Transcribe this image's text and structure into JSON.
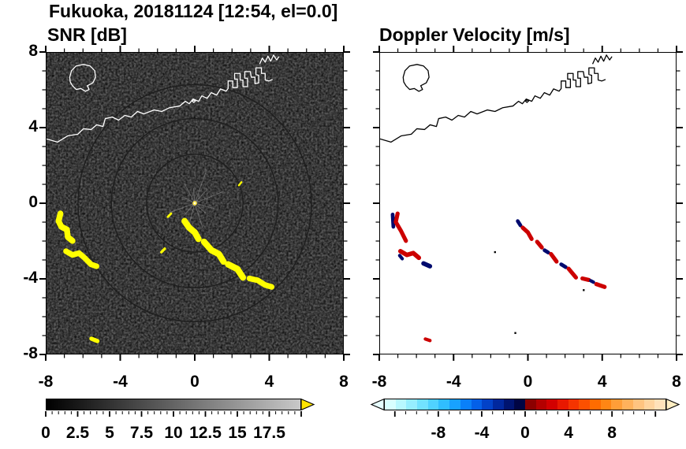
{
  "header": {
    "title": "Fukuoka, 20181124 [12:54, el=0.0]"
  },
  "panels": {
    "snr": {
      "title": "SNR [dB]",
      "bg": "#060606",
      "coast_color": "#ffffff",
      "echo_color": "#ffff00"
    },
    "vel": {
      "title": "Doppler Velocity [m/s]",
      "bg": "#ffffff",
      "coast_color": "#000000"
    }
  },
  "axes": {
    "xlim": [
      -8,
      8
    ],
    "ylim": [
      -8,
      8
    ],
    "major_step": 4,
    "minor_step": 1,
    "x_labels": [
      {
        "v": -8,
        "t": "-8"
      },
      {
        "v": -4,
        "t": "-4"
      },
      {
        "v": 0,
        "t": "0"
      },
      {
        "v": 4,
        "t": "4"
      },
      {
        "v": 8,
        "t": "8"
      }
    ],
    "y_labels": [
      {
        "v": 8,
        "t": "8"
      },
      {
        "v": 4,
        "t": "4"
      },
      {
        "v": 0,
        "t": "0"
      },
      {
        "v": -4,
        "t": "-4"
      },
      {
        "v": -8,
        "t": "-8"
      }
    ]
  },
  "colorbars": {
    "snr": {
      "min": 0,
      "max": 20,
      "minor_step": 0.5,
      "label_step": 2.5,
      "gradient": [
        "#000000",
        "#c8c8c8"
      ],
      "arrow": "#ffe400",
      "labels": [
        {
          "v": 0,
          "t": "0"
        },
        {
          "v": 2.5,
          "t": "2.5"
        },
        {
          "v": 5,
          "t": "5"
        },
        {
          "v": 7.5,
          "t": "7.5"
        },
        {
          "v": 10,
          "t": "10"
        },
        {
          "v": 12.5,
          "t": "12.5"
        },
        {
          "v": 15,
          "t": "15"
        },
        {
          "v": 17.5,
          "t": "17.5"
        }
      ]
    },
    "vel": {
      "min": -13,
      "max": 13,
      "minor_step": 1,
      "label_step": 4,
      "segments": [
        "#d8ffff",
        "#b8f8ff",
        "#96eeff",
        "#72e2ff",
        "#50d2ff",
        "#30beff",
        "#18a2ff",
        "#0a80f8",
        "#0460e8",
        "#0242c8",
        "#01289e",
        "#001470",
        "#000544",
        "#8c0000",
        "#b40000",
        "#d20000",
        "#e81800",
        "#f53400",
        "#fb5000",
        "#ff6c00",
        "#ff8614",
        "#ff9e38",
        "#ffb25c",
        "#ffc480",
        "#ffd49e",
        "#ffe2ba"
      ],
      "arrow_left": "#e6feff",
      "arrow_right": "#ffeec2",
      "labels": [
        {
          "v": -8,
          "t": "-8"
        },
        {
          "v": -4,
          "t": "-4"
        },
        {
          "v": 0,
          "t": "0"
        },
        {
          "v": 4,
          "t": "4"
        },
        {
          "v": 8,
          "t": "8"
        }
      ]
    }
  },
  "geometry": {
    "note": "paths in viewBox coords 0..16 x 0..16, y down; data_x = x-8, data_y = 8-y",
    "coastline": [
      "M 0,4.58 L 0.59,4.75 L 1.14,4.42 L 1.69,4.33 L 1.99,4.04 L 2.41,4.08 L 2.71,3.83 L 3.05,3.92 L 3.17,3.5 L 3.55,3.42 L 3.89,3.58 L 4.23,3.33 L 4.57,3.42 L 4.91,3.12 L 5.25,3.25 L 5.8,3.04 L 6.22,3.12 L 6.64,2.92 L 7.19,2.83 L 7.49,2.58 L 7.7,2.71 L 7.91,2.46 L 8.21,2.58 L 8.38,2.29 L 8.67,2.42 L 8.89,2.12 L 9.18,2.25 L 9.39,1.92 L 9.69,2.04 L 9.8,1.9 L 9.8,1.5 L 10.05,1.5 L 10.05,1.85 L 10.3,1.85 L 10.3,1.4 L 10.15,1.4 L 10.15,1.1 L 10.45,1.1 L 10.45,1.45 L 10.6,1.45 L 10.6,1.8 L 10.85,1.8 L 10.85,1.35 L 10.7,1.35 L 10.7,1.0 L 11.0,1.0 L 11.05,1.3 L 11.25,1.3 L 11.25,1.65 L 11.45,1.6 L 11.45,1.2 L 11.3,1.15 L 11.3,0.8 L 11.6,0.8 L 11.6,1.1 L 11.8,1.1 L 11.8,1.45 L 12.0,1.5 L 12.2,1.42",
      "M 1.25,1.3 L 1.35,0.95 L 1.6,0.7 L 2.0,0.62 L 2.35,0.7 L 2.6,0.95 L 2.65,1.3 L 2.5,1.6 L 2.2,1.75 L 2.3,1.95 L 2.1,2.05 L 1.85,1.9 L 1.6,1.95 L 1.4,1.75 L 1.28,1.55 Z",
      "M 11.5,0.6 L 11.65,0.28 L 11.8,0.5 L 11.95,0.18 L 12.1,0.45 L 12.25,0.12 L 12.42,0.38 L 12.55,0.2",
      "M 7.95,2.5 L 8.03,2.57 L 7.95,2.64 L 7.87,2.57 Z"
    ],
    "rings": [
      2.6,
      4.5,
      6.3
    ],
    "spokes": [
      [
        22,
        1.7
      ],
      [
        48,
        1.0
      ],
      [
        70,
        1.9
      ],
      [
        95,
        0.8
      ],
      [
        118,
        1.2
      ],
      [
        152,
        0.7
      ],
      [
        200,
        1.5
      ],
      [
        228,
        0.9
      ],
      [
        255,
        1.2
      ],
      [
        288,
        1.4
      ],
      [
        318,
        0.8
      ],
      [
        345,
        1.1
      ]
    ],
    "snr_echoes": [
      {
        "p": "0.75,8.55 0.65,8.95 0.8,9.25 1.1,9.4 1.15,9.8 1.4,10.0",
        "w": 0.32
      },
      {
        "p": "1.05,10.55 1.4,10.75 1.75,10.65 2.05,10.9 2.4,11.25 2.7,11.35",
        "w": 0.3
      },
      {
        "p": "7.45,8.95 7.7,9.3 8.0,9.55 8.2,9.9",
        "w": 0.34
      },
      {
        "p": "8.5,10.05 8.9,10.5 9.3,10.7 9.55,11.1",
        "w": 0.34
      },
      {
        "p": "9.8,11.25 10.3,11.5 10.6,11.95",
        "w": 0.34
      },
      {
        "p": "10.95,12.0 11.4,12.1 11.8,12.35 12.15,12.45",
        "w": 0.3
      },
      {
        "p": "6.2,10.6 6.38,10.42",
        "w": 0.14
      },
      {
        "p": "6.55,8.72 6.72,8.55",
        "w": 0.12
      },
      {
        "p": "10.38,7.05 10.52,6.88",
        "w": 0.1
      },
      {
        "p": "2.42,15.2 2.75,15.33",
        "w": 0.22
      }
    ],
    "vel_echoes": [
      {
        "p": "0.68,8.6 0.72,9.25",
        "w": 0.2,
        "c": "#000a6e"
      },
      {
        "p": "0.95,8.55 0.85,9.0 1.12,9.45 1.4,10.0",
        "w": 0.22,
        "c": "#cc0000"
      },
      {
        "p": "1.1,10.55 1.45,10.75 1.8,10.65 2.1,10.9",
        "w": 0.24,
        "c": "#cc0000"
      },
      {
        "p": "1.06,10.78 1.2,10.95",
        "w": 0.18,
        "c": "#000a6e"
      },
      {
        "p": "2.35,11.2 2.7,11.35",
        "w": 0.24,
        "c": "#000a6e"
      },
      {
        "p": "7.45,8.95 7.6,9.18",
        "w": 0.2,
        "c": "#000a6e"
      },
      {
        "p": "7.72,9.3 8.0,9.55 8.2,9.9",
        "w": 0.22,
        "c": "#cc0000"
      },
      {
        "p": "8.5,10.05 8.75,10.35",
        "w": 0.22,
        "c": "#cc0000"
      },
      {
        "p": "8.9,10.5 9.1,10.62",
        "w": 0.2,
        "c": "#000a6e"
      },
      {
        "p": "9.25,10.7 9.55,11.1",
        "w": 0.22,
        "c": "#cc0000"
      },
      {
        "p": "9.8,11.25 10.05,11.4",
        "w": 0.2,
        "c": "#000a6e"
      },
      {
        "p": "10.2,11.48 10.6,11.95",
        "w": 0.22,
        "c": "#cc0000"
      },
      {
        "p": "10.95,12.0 11.3,12.08",
        "w": 0.22,
        "c": "#cc0000"
      },
      {
        "p": "11.4,12.12 11.55,12.2",
        "w": 0.18,
        "c": "#000a6e"
      },
      {
        "p": "11.7,12.3 12.15,12.45",
        "w": 0.22,
        "c": "#cc0000"
      },
      {
        "p": "2.45,15.22 2.7,15.3",
        "w": 0.18,
        "c": "#cc0000"
      }
    ],
    "vel_specks": [
      [
        6.22,
        10.6
      ],
      [
        8.06,
        9.6
      ],
      [
        11.02,
        12.62
      ],
      [
        7.32,
        14.9
      ]
    ]
  },
  "chart_data": [
    {
      "type": "heatmap",
      "title": "SNR [dB]",
      "xlabel": "",
      "ylabel": "",
      "xlim": [
        -8,
        8
      ],
      "ylim": [
        -8,
        8
      ],
      "x_ticks": [
        -8,
        -4,
        0,
        4,
        8
      ],
      "y_ticks": [
        -8,
        -4,
        0,
        4,
        8
      ],
      "minor_tick_interval": 1,
      "grid": false,
      "colorbar": {
        "range": [
          0,
          20
        ],
        "tick_labels": [
          0,
          2.5,
          5,
          7.5,
          10,
          12.5,
          15,
          17.5
        ],
        "minor_tick": 0.5,
        "colormap": "grayscale black (0 dB) to light gray (20 dB), yellow overflow arrow for > max"
      },
      "background_value": "near-0 dB receiver noise speckle (black field)",
      "echoes": [
        {
          "desc": "curved echo streak",
          "from_xy": [
            -7.25,
            -0.55
          ],
          "to_xy": [
            -6.6,
            -2.0
          ],
          "value": "saturated high SNR (yellow, > 20 dB)"
        },
        {
          "desc": "wavy echo streak",
          "from_xy": [
            -6.95,
            -2.55
          ],
          "to_xy": [
            -5.3,
            -3.35
          ],
          "value": "saturated high SNR (yellow)"
        },
        {
          "desc": "long broken diagonal echo line",
          "from_xy": [
            -0.55,
            -0.95
          ],
          "to_xy": [
            4.15,
            -4.45
          ],
          "value": "saturated high SNR (yellow)"
        },
        {
          "desc": "small echo speck",
          "from_xy": [
            -1.8,
            -2.6
          ],
          "to_xy": [
            -1.6,
            -2.4
          ],
          "value": "high SNR"
        },
        {
          "desc": "small echo speck near bottom",
          "from_xy": [
            -5.6,
            -7.2
          ],
          "to_xy": [
            -5.25,
            -7.35
          ],
          "value": "high SNR"
        },
        {
          "desc": "radar origin clutter with faint radial spokes and rings",
          "from_xy": [
            0,
            0
          ],
          "to_xy": [
            0,
            0
          ],
          "value": "mixed low-level clutter"
        }
      ],
      "overlay": "Fukuoka bay coastline and harbor jetties drawn as white outline; island outline upper-left"
    },
    {
      "type": "heatmap",
      "title": "Doppler Velocity [m/s]",
      "xlabel": "",
      "ylabel": "",
      "xlim": [
        -8,
        8
      ],
      "ylim": [
        -8,
        8
      ],
      "x_ticks": [
        -8,
        -4,
        0,
        4,
        8
      ],
      "y_ticks": [
        -8,
        -4,
        0,
        4,
        8
      ],
      "minor_tick_interval": 1,
      "grid": false,
      "colorbar": {
        "range": [
          -13,
          13
        ],
        "tick_labels": [
          -8,
          -4,
          0,
          4,
          8
        ],
        "minor_tick": 1,
        "colormap": "pale cyan -> blue -> dark navy for negative velocities; dark red -> red -> orange -> pale tan for positive; overflow arrows both ends"
      },
      "background_value": "no echo (white, velocities masked where SNR is low)",
      "echoes": [
        {
          "desc": "curved echo streak",
          "from_xy": [
            -7.25,
            -0.55
          ],
          "to_xy": [
            -6.6,
            -2.0
          ],
          "value": "mostly positive (red) with negative (navy) patch on left edge"
        },
        {
          "desc": "wavy echo streak",
          "from_xy": [
            -6.95,
            -2.55
          ],
          "to_xy": [
            -5.3,
            -3.35
          ],
          "value": "positive (red) with negative (navy) patch at right end"
        },
        {
          "desc": "long broken diagonal echo line",
          "from_xy": [
            -0.55,
            -0.95
          ],
          "to_xy": [
            4.15,
            -4.45
          ],
          "value": "alternating positive (red) and negative (navy) segments"
        },
        {
          "desc": "small echo speck near bottom",
          "from_xy": [
            -5.55,
            -7.25
          ],
          "to_xy": [
            -5.3,
            -7.3
          ],
          "value": "positive (red)"
        },
        {
          "desc": "scattered tiny specks",
          "from_xy": [
            -1.8,
            -2.6
          ],
          "to_xy": [
            3.0,
            -4.6
          ],
          "value": "near-zero (black dots)"
        }
      ],
      "overlay": "same coastline drawn as black outline on white background"
    }
  ]
}
